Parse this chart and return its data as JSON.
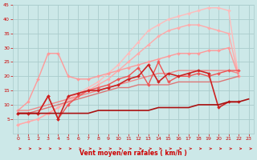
{
  "bg_color": "#cce8e8",
  "grid_color": "#aacccc",
  "xlabel": "Vent moyen/en rafales ( km/h )",
  "xlabel_color": "#cc0000",
  "tick_color": "#cc0000",
  "xlim": [
    -0.5,
    23.5
  ],
  "ylim": [
    0,
    45
  ],
  "yticks": [
    5,
    10,
    15,
    20,
    25,
    30,
    35,
    40,
    45
  ],
  "xticks": [
    0,
    1,
    2,
    3,
    4,
    5,
    6,
    7,
    8,
    9,
    10,
    11,
    12,
    13,
    14,
    15,
    16,
    17,
    18,
    19,
    20,
    21,
    22,
    23
  ],
  "lines": [
    {
      "x": [
        0,
        1,
        2,
        3,
        4,
        5,
        6,
        7,
        8,
        9,
        10,
        11,
        12,
        13,
        14,
        15,
        16,
        17,
        18,
        19,
        20,
        21,
        22
      ],
      "y": [
        3,
        4,
        5,
        7,
        9,
        12,
        14,
        16,
        18,
        21,
        24,
        28,
        32,
        36,
        38,
        40,
        41,
        42,
        43,
        44,
        44,
        43,
        20
      ],
      "color": "#ffbbbb",
      "lw": 1.0,
      "marker": "D",
      "ms": 2.0,
      "zorder": 2
    },
    {
      "x": [
        0,
        1,
        2,
        3,
        4,
        5,
        6,
        7,
        8,
        9,
        10,
        11,
        12,
        13,
        14,
        15,
        16,
        17,
        18,
        19,
        20,
        21,
        22
      ],
      "y": [
        3,
        4,
        5,
        7,
        9,
        11,
        13,
        15,
        17,
        19,
        22,
        25,
        28,
        31,
        34,
        36,
        37,
        38,
        38,
        37,
        36,
        35,
        20
      ],
      "color": "#ffaaaa",
      "lw": 1.0,
      "marker": "D",
      "ms": 2.0,
      "zorder": 2
    },
    {
      "x": [
        0,
        1,
        2,
        3,
        4,
        5,
        6,
        7,
        8,
        9,
        10,
        11,
        12,
        13,
        14,
        15,
        16,
        17,
        18,
        19,
        20,
        21,
        22,
        23
      ],
      "y": [
        8,
        11,
        19,
        28,
        28,
        20,
        19,
        19,
        20,
        21,
        22,
        23,
        24,
        25,
        26,
        27,
        28,
        28,
        28,
        29,
        29,
        30,
        20,
        null
      ],
      "color": "#ff9999",
      "lw": 1.0,
      "marker": "D",
      "ms": 2.0,
      "zorder": 2
    },
    {
      "x": [
        0,
        1,
        2,
        3,
        4,
        5,
        6,
        7,
        8,
        9,
        10,
        11,
        12,
        13,
        14,
        15,
        16,
        17,
        18,
        19,
        20,
        21,
        22,
        23
      ],
      "y": [
        8,
        8,
        9,
        10,
        11,
        12,
        13,
        14,
        15,
        16,
        17,
        18,
        19,
        20,
        21,
        21,
        22,
        22,
        22,
        22,
        22,
        22,
        21,
        null
      ],
      "color": "#ee8888",
      "lw": 1.0,
      "marker": null,
      "ms": 0,
      "zorder": 2
    },
    {
      "x": [
        0,
        1,
        2,
        3,
        4,
        5,
        6,
        7,
        8,
        9,
        10,
        11,
        12,
        13,
        14,
        15,
        16,
        17,
        18,
        19,
        20,
        21,
        22,
        23
      ],
      "y": [
        7,
        7,
        8,
        9,
        10,
        11,
        12,
        13,
        14,
        15,
        16,
        16,
        17,
        17,
        17,
        17,
        18,
        18,
        18,
        18,
        18,
        19,
        20,
        null
      ],
      "color": "#dd7777",
      "lw": 1.0,
      "marker": null,
      "ms": 0,
      "zorder": 2
    },
    {
      "x": [
        0,
        1,
        2,
        3,
        4,
        5,
        6,
        7,
        8,
        9,
        10,
        11,
        12,
        13,
        14,
        15,
        16,
        17,
        18,
        19,
        20,
        21,
        22
      ],
      "y": [
        7,
        7,
        7,
        13,
        5,
        10,
        13,
        15,
        16,
        17,
        19,
        20,
        23,
        17,
        25,
        18,
        20,
        20,
        21,
        20,
        21,
        22,
        22
      ],
      "color": "#ee5555",
      "lw": 1.0,
      "marker": "D",
      "ms": 2.0,
      "zorder": 3
    },
    {
      "x": [
        0,
        1,
        2,
        3,
        4,
        5,
        6,
        7,
        8,
        9,
        10,
        11,
        12,
        13,
        14,
        15,
        16,
        17,
        18,
        19,
        20,
        21,
        22
      ],
      "y": [
        7,
        7,
        7,
        13,
        5,
        13,
        14,
        15,
        15,
        16,
        17,
        19,
        20,
        24,
        18,
        21,
        20,
        21,
        22,
        21,
        9,
        11,
        11
      ],
      "color": "#cc2222",
      "lw": 1.2,
      "marker": "D",
      "ms": 2.0,
      "zorder": 4
    },
    {
      "x": [
        0,
        1,
        2,
        3,
        4,
        5,
        6,
        7,
        8,
        9,
        10,
        11,
        12,
        13,
        14,
        15,
        16,
        17,
        18,
        19,
        20,
        21,
        22,
        23
      ],
      "y": [
        7,
        7,
        7,
        7,
        7,
        7,
        7,
        7,
        8,
        8,
        8,
        8,
        8,
        8,
        9,
        9,
        9,
        9,
        10,
        10,
        10,
        11,
        11,
        12
      ],
      "color": "#aa1111",
      "lw": 1.2,
      "marker": null,
      "ms": 0,
      "zorder": 5
    }
  ],
  "arrow_color": "#cc2222"
}
